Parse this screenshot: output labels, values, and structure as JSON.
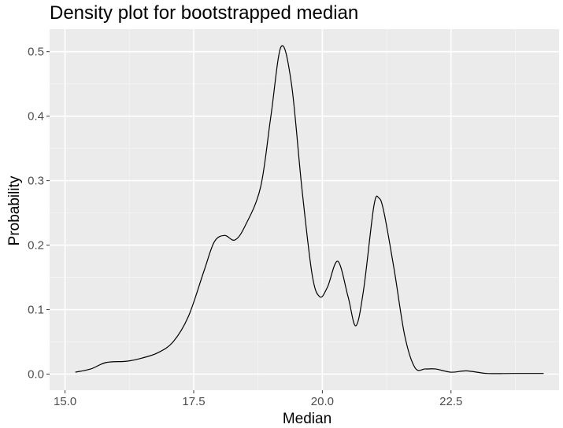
{
  "chart_data": {
    "type": "line",
    "title": "Density plot for bootstrapped median",
    "xlabel": "Median",
    "ylabel": "Probability",
    "xlim": [
      14.7,
      24.6
    ],
    "ylim": [
      -0.025,
      0.535
    ],
    "x_ticks": [
      15.0,
      17.5,
      20.0,
      22.5
    ],
    "x_tick_labels": [
      "15.0",
      "17.5",
      "20.0",
      "22.5"
    ],
    "y_ticks": [
      0.0,
      0.1,
      0.2,
      0.3,
      0.4,
      0.5
    ],
    "y_tick_labels": [
      "0.0",
      "0.1",
      "0.2",
      "0.3",
      "0.4",
      "0.5"
    ],
    "grid": true,
    "series": [
      {
        "x": [
          15.2,
          15.5,
          15.8,
          16.2,
          16.5,
          16.8,
          17.1,
          17.4,
          17.7,
          17.9,
          18.1,
          18.3,
          18.5,
          18.8,
          19.0,
          19.2,
          19.4,
          19.6,
          19.8,
          19.95,
          20.1,
          20.3,
          20.5,
          20.65,
          20.8,
          21.0,
          21.1,
          21.2,
          21.4,
          21.6,
          21.8,
          22.0,
          22.2,
          22.5,
          22.8,
          23.2,
          23.7,
          24.3
        ],
        "y": [
          0.003,
          0.008,
          0.018,
          0.02,
          0.025,
          0.033,
          0.05,
          0.09,
          0.16,
          0.205,
          0.215,
          0.208,
          0.23,
          0.29,
          0.4,
          0.508,
          0.45,
          0.29,
          0.155,
          0.12,
          0.135,
          0.175,
          0.12,
          0.075,
          0.13,
          0.26,
          0.273,
          0.25,
          0.16,
          0.06,
          0.01,
          0.008,
          0.008,
          0.003,
          0.005,
          0.001,
          0.001,
          0.001
        ],
        "color": "#000000"
      }
    ]
  },
  "colors": {
    "panel_background": "#ebebeb",
    "grid_major": "#ffffff",
    "grid_minor": "#f5f5f5",
    "tick_label": "#4d4d4d",
    "tick_mark": "#333333"
  }
}
